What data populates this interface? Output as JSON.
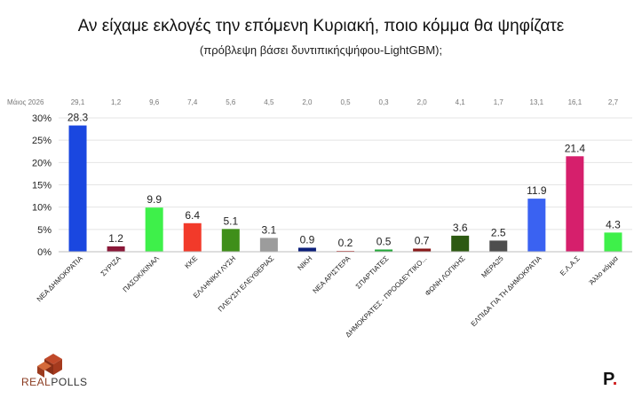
{
  "chart_data": {
    "type": "bar",
    "title": "Αν είχαμε εκλογές την επόμενη Κυριακή, ποιο κόμμα θα ψηφίζατε",
    "subtitle": "(πρόβλεψη βάσει δυντιπικήςψήφου-LightGBM);",
    "ylim": [
      0,
      30
    ],
    "yticks": [
      "0%",
      "5%",
      "10%",
      "15%",
      "20%",
      "25%",
      "30%"
    ],
    "comparison_label": "Μάιος 2026",
    "categories": [
      "ΝΕΑ ΔΗΜΟΚΡΑΤΙΑ",
      "ΣΥΡΙΖΑ",
      "ΠΑΣΟΚ/ΚΙΝΑΛ",
      "ΚΚΕ",
      "ΕΛΛΗΝΙΚΗ ΛΥΣΗ",
      "ΠΛΕΥΣΗ ΕΛΕΥΘΕΡΙΑΣ",
      "ΝΙΚΗ",
      "ΝΕΑ ΑΡΙΣΤΕΡΑ",
      "ΣΠΑΡΤΙΑΤΕΣ",
      "ΔΗΜΟΚΡΑΤΕΣ - ΠΡΟΟΔΕΥΤΙΚΟ...",
      "ΦΩΝΗ ΛΟΓΙΚΗΣ",
      "ΜΕΡΑ25",
      "ΕΛΠΙΔΑ ΓΙΑ ΤΗ ΔΗΜΟΚΡΑΤΙΑ",
      "Ε.Λ.Α.Σ",
      "Άλλο κόμμα"
    ],
    "values": [
      28.3,
      1.2,
      9.9,
      6.4,
      5.1,
      3.1,
      0.9,
      0.2,
      0.5,
      0.7,
      3.6,
      2.5,
      11.9,
      21.4,
      4.3
    ],
    "value_labels": [
      "28.3",
      "1.2",
      "9.9",
      "6.4",
      "5.1",
      "3.1",
      "0.9",
      "0.2",
      "0.5",
      "0.7",
      "3.6",
      "2.5",
      "11.9",
      "21.4",
      "4.3"
    ],
    "previous_values": [
      "29,1",
      "1,2",
      "9,6",
      "7,4",
      "5,6",
      "4,5",
      "2,0",
      "0,5",
      "0,3",
      "2,0",
      "4,1",
      "1,7",
      "13,1",
      "16,1",
      "2,7"
    ],
    "colors": [
      "#1a47e0",
      "#8a1838",
      "#3ef04a",
      "#f23a2a",
      "#3f8f1a",
      "#9c9c9c",
      "#0c1f7a",
      "#c23a3a",
      "#22a838",
      "#8a1818",
      "#2d5a12",
      "#4e4e4e",
      "#3a62f2",
      "#d61f6c",
      "#3ef04a"
    ],
    "grid": true
  },
  "logos": {
    "left_text_a": "REAL",
    "left_text_b": "POLLS",
    "right_letter": "P",
    "right_dot": "."
  }
}
